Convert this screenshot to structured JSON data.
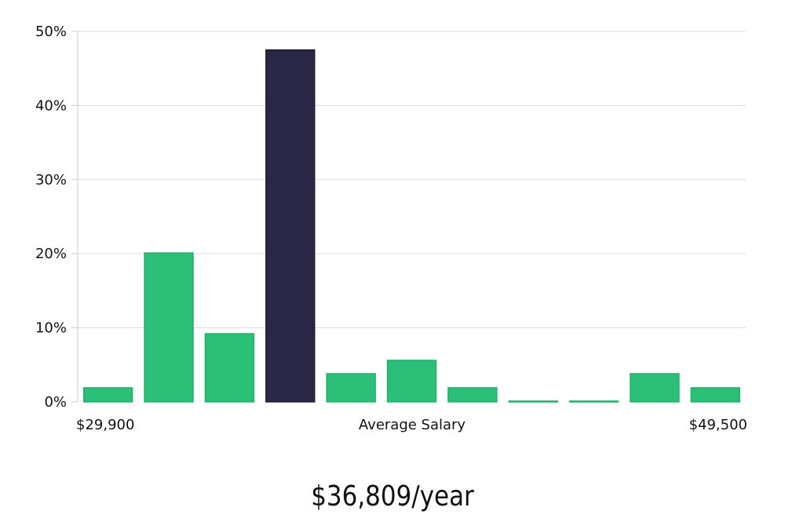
{
  "headline": "$36,809/year",
  "chart_data": {
    "type": "bar",
    "xlabel": "Average Salary",
    "ylabel": "",
    "x_range_labels": {
      "min": "$29,900",
      "max": "$49,500"
    },
    "ylim": [
      0,
      50
    ],
    "y_ticks": [
      0,
      10,
      20,
      30,
      40,
      50
    ],
    "y_tick_labels": [
      "0%",
      "10%",
      "20%",
      "30%",
      "40%",
      "50%"
    ],
    "grid": true,
    "values": [
      1.9,
      20.1,
      9.2,
      47.5,
      3.8,
      5.6,
      1.9,
      0.1,
      0.1,
      3.8,
      1.9
    ],
    "highlight_index": 3,
    "colors": {
      "bar": "#2bbf78",
      "bar_stroke": "#22ad6a",
      "highlight": "#2a2746",
      "highlight_stroke": "#1c1a3a",
      "grid": "#dddddd",
      "axis": "#cccccc"
    }
  }
}
